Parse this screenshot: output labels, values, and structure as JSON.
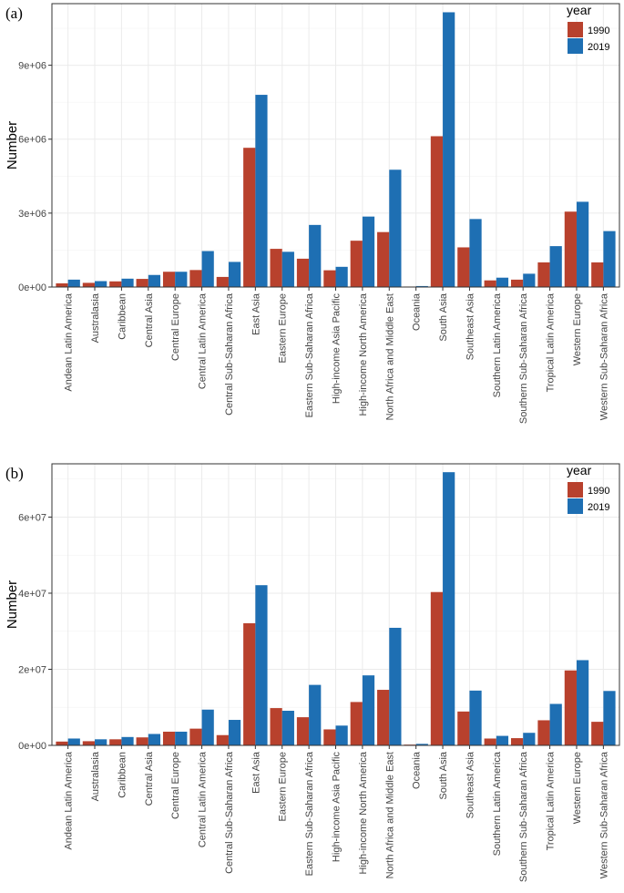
{
  "colors": {
    "series_1990": "#b8412d",
    "series_2019": "#1e6fb3"
  },
  "chart_data": [
    {
      "type": "bar",
      "panel_label": "(a)",
      "ylabel": "Number",
      "legend_title": "year",
      "legend_position": "top-right",
      "grid": true,
      "ylim": [
        0,
        11500000
      ],
      "yticks": [
        0,
        3000000,
        6000000,
        9000000
      ],
      "ytick_labels": [
        "0e+00",
        "3e+06",
        "6e+06",
        "9e+06"
      ],
      "categories": [
        "Andean Latin America",
        "Australasia",
        "Caribbean",
        "Central Asia",
        "Central Europe",
        "Central Latin America",
        "Central Sub-Saharan Africa",
        "East Asia",
        "Eastern Europe",
        "Eastern Sub-Saharan Africa",
        "High-income Asia Pacific",
        "High-income North America",
        "North Africa and Middle East",
        "Oceania",
        "South Asia",
        "Southeast Asia",
        "Southern Latin America",
        "Southern Sub-Saharan Africa",
        "Tropical Latin America",
        "Western Europe",
        "Western Sub-Saharan Africa"
      ],
      "series": [
        {
          "name": "1990",
          "values": [
            150000,
            170000,
            230000,
            330000,
            620000,
            690000,
            410000,
            5650000,
            1550000,
            1150000,
            680000,
            1880000,
            2230000,
            20000,
            6120000,
            1610000,
            270000,
            300000,
            1000000,
            3060000,
            1000000
          ]
        },
        {
          "name": "2019",
          "values": [
            300000,
            240000,
            340000,
            490000,
            620000,
            1460000,
            1020000,
            7800000,
            1430000,
            2520000,
            820000,
            2860000,
            4760000,
            40000,
            11150000,
            2760000,
            380000,
            540000,
            1660000,
            3460000,
            2270000
          ]
        }
      ]
    },
    {
      "type": "bar",
      "panel_label": "(b)",
      "ylabel": "Number",
      "legend_title": "year",
      "legend_position": "top-right",
      "grid": true,
      "ylim": [
        0,
        74000000
      ],
      "yticks": [
        0,
        20000000,
        40000000,
        60000000
      ],
      "ytick_labels": [
        "0e+00",
        "2e+07",
        "4e+07",
        "6e+07"
      ],
      "categories": [
        "Andean Latin America",
        "Australasia",
        "Caribbean",
        "Central Asia",
        "Central Europe",
        "Central Latin America",
        "Central Sub-Saharan Africa",
        "East Asia",
        "Eastern Europe",
        "Eastern Sub-Saharan Africa",
        "High-income Asia Pacific",
        "High-income North America",
        "North Africa and Middle East",
        "Oceania",
        "South Asia",
        "Southeast Asia",
        "Southern Latin America",
        "Southern Sub-Saharan Africa",
        "Tropical Latin America",
        "Western Europe",
        "Western Sub-Saharan Africa"
      ],
      "series": [
        {
          "name": "1990",
          "values": [
            1000000,
            1100000,
            1600000,
            2100000,
            3600000,
            4400000,
            2700000,
            32100000,
            9800000,
            7400000,
            4200000,
            11400000,
            14600000,
            200000,
            40300000,
            8900000,
            1800000,
            1900000,
            6600000,
            19700000,
            6200000
          ]
        },
        {
          "name": "2019",
          "values": [
            1800000,
            1600000,
            2200000,
            3000000,
            3600000,
            9400000,
            6700000,
            42100000,
            9100000,
            15900000,
            5200000,
            18400000,
            30900000,
            400000,
            71800000,
            14400000,
            2500000,
            3300000,
            10900000,
            22400000,
            14300000
          ]
        }
      ]
    }
  ]
}
